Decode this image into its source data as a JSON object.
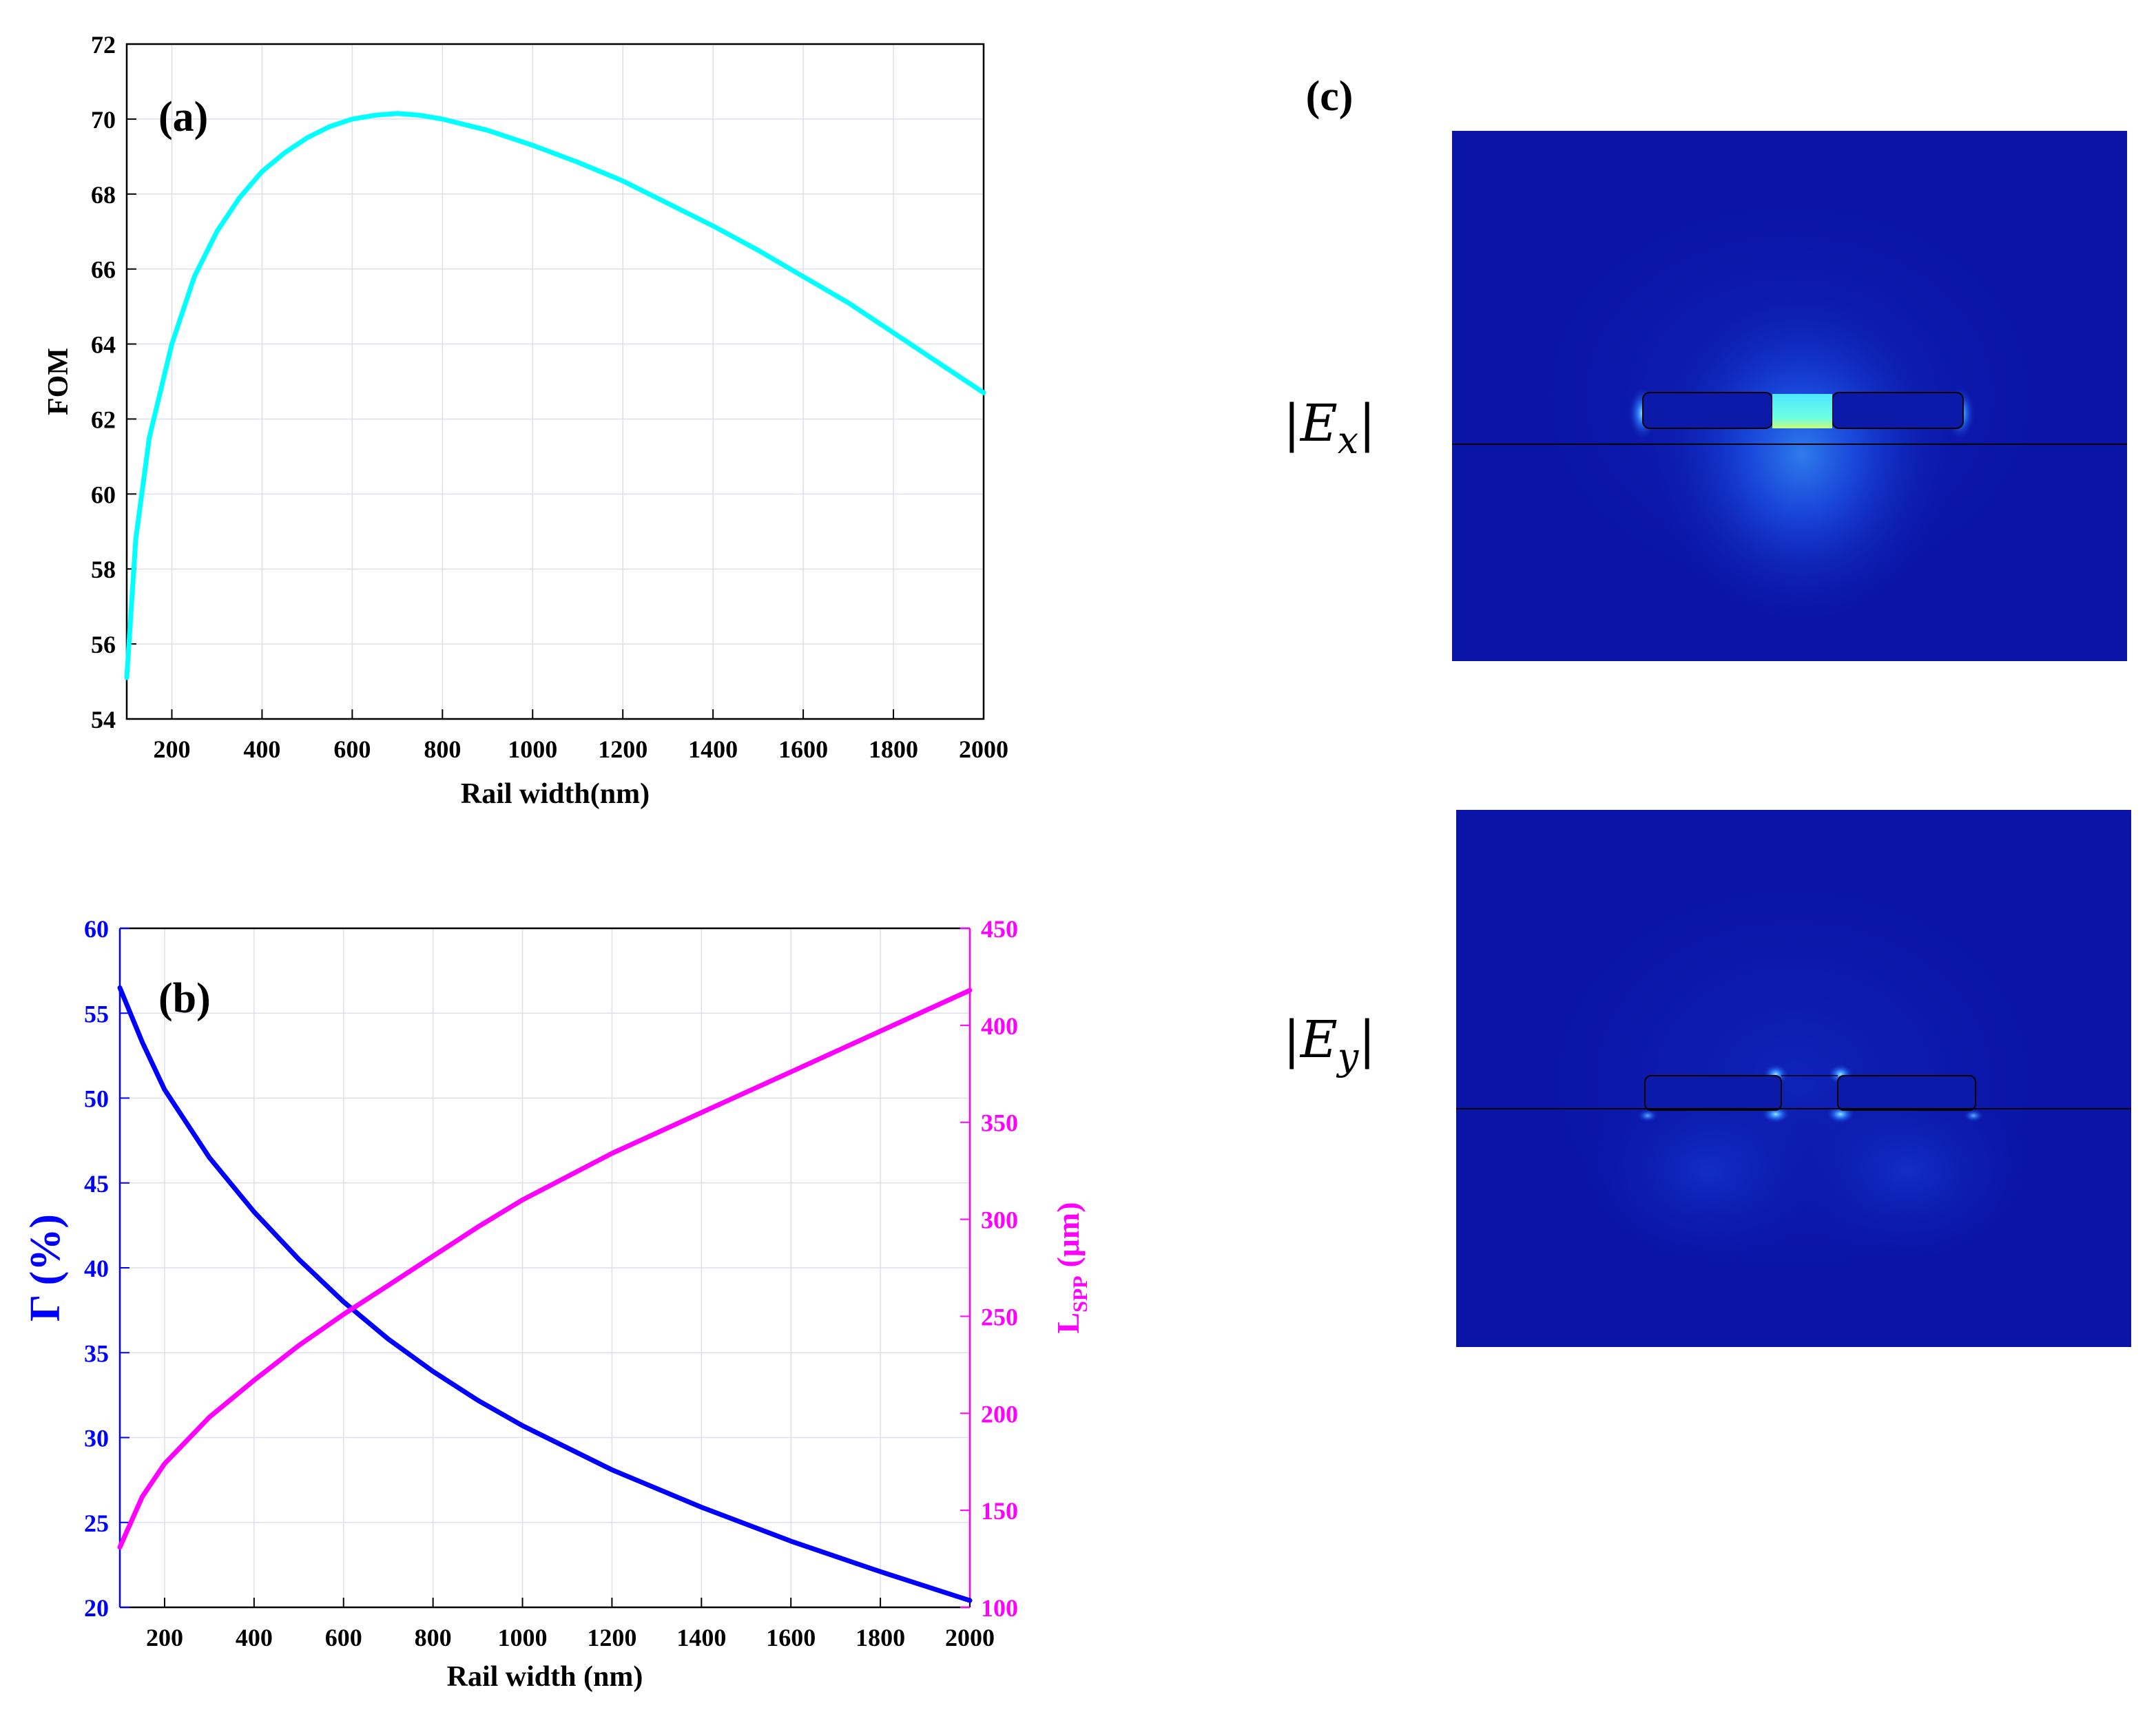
{
  "chart_data": [
    {
      "type": "line",
      "panel_label": "(a)",
      "xlabel": "Rail width(nm)",
      "ylabel": "FOM",
      "xlim": [
        100,
        2000
      ],
      "ylim": [
        54,
        72
      ],
      "xticks": [
        200,
        400,
        600,
        800,
        1000,
        1200,
        1400,
        1600,
        1800,
        2000
      ],
      "yticks": [
        54,
        56,
        58,
        60,
        62,
        64,
        66,
        68,
        70,
        72
      ],
      "grid": true,
      "series": [
        {
          "color": "#00ffff",
          "x": [
            100,
            120,
            150,
            200,
            250,
            300,
            350,
            400,
            450,
            500,
            550,
            600,
            650,
            700,
            750,
            800,
            900,
            1000,
            1100,
            1200,
            1300,
            1400,
            1500,
            1600,
            1700,
            1800,
            1900,
            2000
          ],
          "y": [
            55.1,
            58.8,
            61.5,
            64.0,
            65.8,
            67.0,
            67.9,
            68.6,
            69.1,
            69.5,
            69.8,
            70.0,
            70.1,
            70.15,
            70.1,
            70.0,
            69.7,
            69.3,
            68.85,
            68.35,
            67.75,
            67.15,
            66.5,
            65.8,
            65.1,
            64.3,
            63.5,
            62.7
          ]
        }
      ]
    },
    {
      "type": "line",
      "panel_label": "(b)",
      "xlabel": "Rail width (nm)",
      "ylabel_left": "Γ (%)",
      "ylabel_right_main": "L",
      "ylabel_right_sub": "SPP",
      "ylabel_right_unit": "(μm)",
      "xlim": [
        100,
        2000
      ],
      "ylim_left": [
        20,
        60
      ],
      "ylim_right": [
        100,
        450
      ],
      "xticks": [
        200,
        400,
        600,
        800,
        1000,
        1200,
        1400,
        1600,
        1800,
        2000
      ],
      "yticks_left": [
        20,
        25,
        30,
        35,
        40,
        45,
        50,
        55,
        60
      ],
      "yticks_right": [
        100,
        150,
        200,
        250,
        300,
        350,
        400,
        450
      ],
      "grid": true,
      "series": [
        {
          "axis": "left",
          "color": "#0000ff",
          "x": [
            100,
            150,
            200,
            300,
            400,
            500,
            600,
            700,
            800,
            900,
            1000,
            1200,
            1400,
            1600,
            1800,
            2000
          ],
          "y": [
            56.5,
            53.3,
            50.5,
            46.5,
            43.3,
            40.5,
            38.0,
            35.8,
            33.9,
            32.2,
            30.7,
            28.1,
            25.9,
            23.9,
            22.1,
            20.4
          ]
        },
        {
          "axis": "right",
          "color": "#ff00ff",
          "x": [
            100,
            150,
            200,
            300,
            400,
            500,
            600,
            700,
            800,
            900,
            1000,
            1200,
            1400,
            1600,
            1800,
            2000
          ],
          "y": [
            131,
            157,
            174,
            198,
            217,
            235,
            251,
            266,
            281,
            296,
            310,
            334,
            355,
            376,
            397,
            418
          ]
        }
      ]
    }
  ],
  "panel_c": {
    "label": "(c)",
    "fields": [
      {
        "label_main": "E",
        "label_sub": "x"
      },
      {
        "label_main": "E",
        "label_sub": "y"
      }
    ],
    "colors": {
      "background": "#0a14a6",
      "hot": "#7dffd8",
      "glow": "#1e6cff"
    }
  }
}
